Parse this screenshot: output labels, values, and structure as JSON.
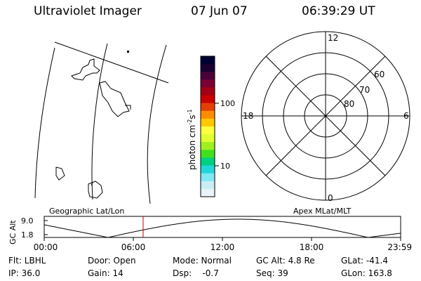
{
  "header": {
    "title": "Ultraviolet Imager",
    "date": "07 Jun 07",
    "time": "06:39:29 UT"
  },
  "colorbar": {
    "unit_base": "photon cm",
    "unit_exp1": "-2",
    "unit_mid": "s",
    "unit_exp2": "-1",
    "tick_100": "100",
    "tick_10": "10",
    "colors": [
      "#000033",
      "#1a0033",
      "#4a0038",
      "#7a0033",
      "#a30018",
      "#c80000",
      "#e64000",
      "#ff8c00",
      "#ffc800",
      "#ffff40",
      "#e0ff30",
      "#a0f020",
      "#40e020",
      "#00d080",
      "#20d8d8",
      "#80e8f0",
      "#c8eef4",
      "#e8f4f8"
    ]
  },
  "polar": {
    "mlt_12": "12",
    "mlt_18": "18",
    "mlt_6": "6",
    "mlt_0": "0",
    "lat_60": "60",
    "lat_70": "70",
    "lat_80": "80"
  },
  "labels": {
    "geo": "Geographic Lat/Lon",
    "apex": "Apex MLat/MLT"
  },
  "altplot": {
    "ylabel": "GC Alt",
    "ymax": "9.0",
    "ymin": "1.8",
    "ticks": [
      "00:00",
      "06:00",
      "12:00",
      "18:00",
      "23:59"
    ],
    "cursor_hour": 6.66,
    "cursor_color": "#c00000"
  },
  "info": {
    "flt": "Flt: LBHL",
    "ip": "IP: 36.0",
    "door": "Door: Open",
    "gain": "Gain: 14",
    "mode": "Mode: Normal",
    "dsp": "Dsp:    -0.7",
    "gcalt": "GC Alt: 4.8 Re",
    "seq": "Seq: 39",
    "glat": "GLat: -41.4",
    "glon": "GLon: 163.8"
  }
}
